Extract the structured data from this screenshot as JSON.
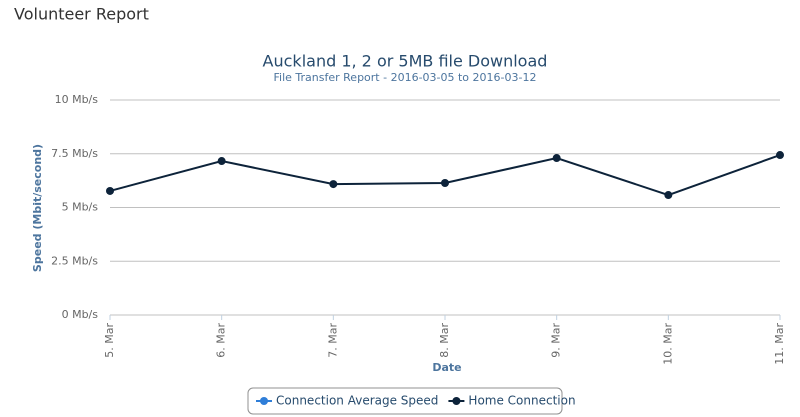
{
  "header": {
    "title": "Volunteer Report"
  },
  "chart_data": {
    "type": "line",
    "title": "Auckland 1, 2 or 5MB file Download",
    "subtitle": "File Transfer Report - 2016-03-05 to 2016-03-12",
    "x_label": "Date",
    "y_label": "Speed (Mbit/second)",
    "categories": [
      "5. Mar",
      "6. Mar",
      "7. Mar",
      "8. Mar",
      "9. Mar",
      "10. Mar",
      "11. Mar"
    ],
    "series": [
      {
        "name": "Connection Average Speed",
        "color": "#2f7ed8",
        "values": [
          null,
          null,
          null,
          null,
          null,
          null,
          null
        ]
      },
      {
        "name": "Home Connection",
        "color": "#0d233a",
        "values": [
          5.77,
          7.16,
          6.09,
          6.14,
          7.3,
          5.58,
          7.44
        ]
      }
    ],
    "ylim": [
      0,
      10
    ],
    "yticks": [
      {
        "value": 0,
        "label": "0 Mb/s"
      },
      {
        "value": 2.5,
        "label": "2.5 Mb/s"
      },
      {
        "value": 5,
        "label": "5 Mb/s"
      },
      {
        "value": 7.5,
        "label": "7.5 Mb/s"
      },
      {
        "value": 10,
        "label": "10 Mb/s"
      }
    ],
    "grid": true,
    "legend": "bottom"
  }
}
